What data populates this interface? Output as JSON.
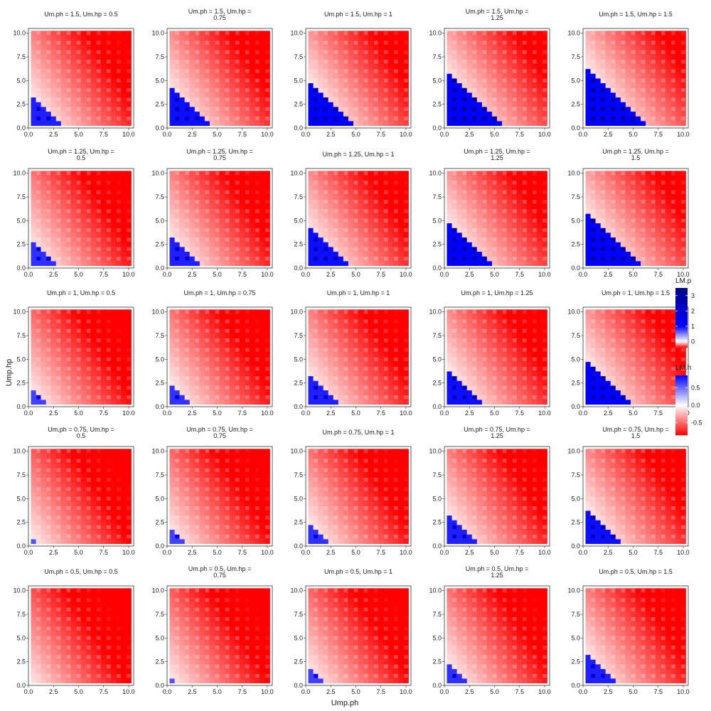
{
  "chart_data": {
    "type": "heatmap",
    "title": "",
    "xlabel": "Ump.ph",
    "ylabel": "Ump.hp",
    "xlim": [
      0,
      10.5
    ],
    "ylim": [
      0,
      10.5
    ],
    "x_ticks": [
      "0.0",
      "2.5",
      "5.0",
      "7.5",
      "10.0"
    ],
    "y_ticks": [
      "0.0",
      "2.5",
      "5.0",
      "7.5",
      "10.0"
    ],
    "grid": "light",
    "legend_position": "right",
    "legends": [
      {
        "title": "LM.p",
        "ticks": [
          "3",
          "2",
          "1",
          "0"
        ],
        "values": [
          3,
          2,
          1,
          0
        ],
        "range": [
          -0.4,
          3.5
        ],
        "colors": [
          "#ff0000",
          "#ffffff",
          "#0000ff",
          "#00008b"
        ]
      },
      {
        "title": "LM.h",
        "ticks": [
          "0.5",
          "0.0",
          "-0.5"
        ],
        "values": [
          0.5,
          0.0,
          -0.5
        ],
        "range": [
          -0.85,
          0.85
        ],
        "colors": [
          "#ff0000",
          "#ffffff",
          "#0000ff"
        ]
      }
    ],
    "colors": {
      "positive": "#0000ff",
      "neutral": "#ffffff",
      "negative": "#ff0000",
      "dark": "#00008b"
    },
    "panels": [
      [
        {
          "title": "Um.ph = 1.5, Um.hp = 0.5",
          "uph": 1.5,
          "uhp": 0.5
        },
        {
          "title": "Um.ph = 1.5, Um.hp =\n0.75",
          "uph": 1.5,
          "uhp": 0.75
        },
        {
          "title": "Um.ph = 1.5, Um.hp = 1",
          "uph": 1.5,
          "uhp": 1
        },
        {
          "title": "Um.ph = 1.5, Um.hp =\n1.25",
          "uph": 1.5,
          "uhp": 1.25
        },
        {
          "title": "Um.ph = 1.5, Um.hp = 1.5",
          "uph": 1.5,
          "uhp": 1.5
        }
      ],
      [
        {
          "title": "Um.ph = 1.25, Um.hp =\n0.5",
          "uph": 1.25,
          "uhp": 0.5
        },
        {
          "title": "Um.ph = 1.25, Um.hp =\n0.75",
          "uph": 1.25,
          "uhp": 0.75
        },
        {
          "title": "Um.ph = 1.25, Um.hp = 1",
          "uph": 1.25,
          "uhp": 1
        },
        {
          "title": "Um.ph = 1.25, Um.hp =\n1.25",
          "uph": 1.25,
          "uhp": 1.25
        },
        {
          "title": "Um.ph = 1.25, Um.hp =\n1.5",
          "uph": 1.25,
          "uhp": 1.5
        }
      ],
      [
        {
          "title": "Um.ph = 1, Um.hp = 0.5",
          "uph": 1,
          "uhp": 0.5
        },
        {
          "title": "Um.ph = 1, Um.hp = 0.75",
          "uph": 1,
          "uhp": 0.75
        },
        {
          "title": "Um.ph = 1, Um.hp = 1",
          "uph": 1,
          "uhp": 1
        },
        {
          "title": "Um.ph = 1, Um.hp = 1.25",
          "uph": 1,
          "uhp": 1.25
        },
        {
          "title": "Um.ph = 1, Um.hp = 1.5",
          "uph": 1,
          "uhp": 1.5
        }
      ],
      [
        {
          "title": "Um.ph = 0.75, Um.hp =\n0.5",
          "uph": 0.75,
          "uhp": 0.5
        },
        {
          "title": "Um.ph = 0.75, Um.hp =\n0.75",
          "uph": 0.75,
          "uhp": 0.75
        },
        {
          "title": "Um.ph = 0.75, Um.hp = 1",
          "uph": 0.75,
          "uhp": 1
        },
        {
          "title": "Um.ph = 0.75, Um.hp =\n1.25",
          "uph": 0.75,
          "uhp": 1.25
        },
        {
          "title": "Um.ph = 0.75, Um.hp =\n1.5",
          "uph": 0.75,
          "uhp": 1.5
        }
      ],
      [
        {
          "title": "Um.ph = 0.5, Um.hp = 0.5",
          "uph": 0.5,
          "uhp": 0.5
        },
        {
          "title": "Um.ph = 0.5, Um.hp =\n0.75",
          "uph": 0.5,
          "uhp": 0.75
        },
        {
          "title": "Um.ph = 0.5, Um.hp = 1",
          "uph": 0.5,
          "uhp": 1
        },
        {
          "title": "Um.ph = 0.5, Um.hp =\n1.25",
          "uph": 0.5,
          "uhp": 1.25
        },
        {
          "title": "Um.ph = 0.5, Um.hp = 1.5",
          "uph": 0.5,
          "uhp": 1.5
        }
      ]
    ]
  }
}
